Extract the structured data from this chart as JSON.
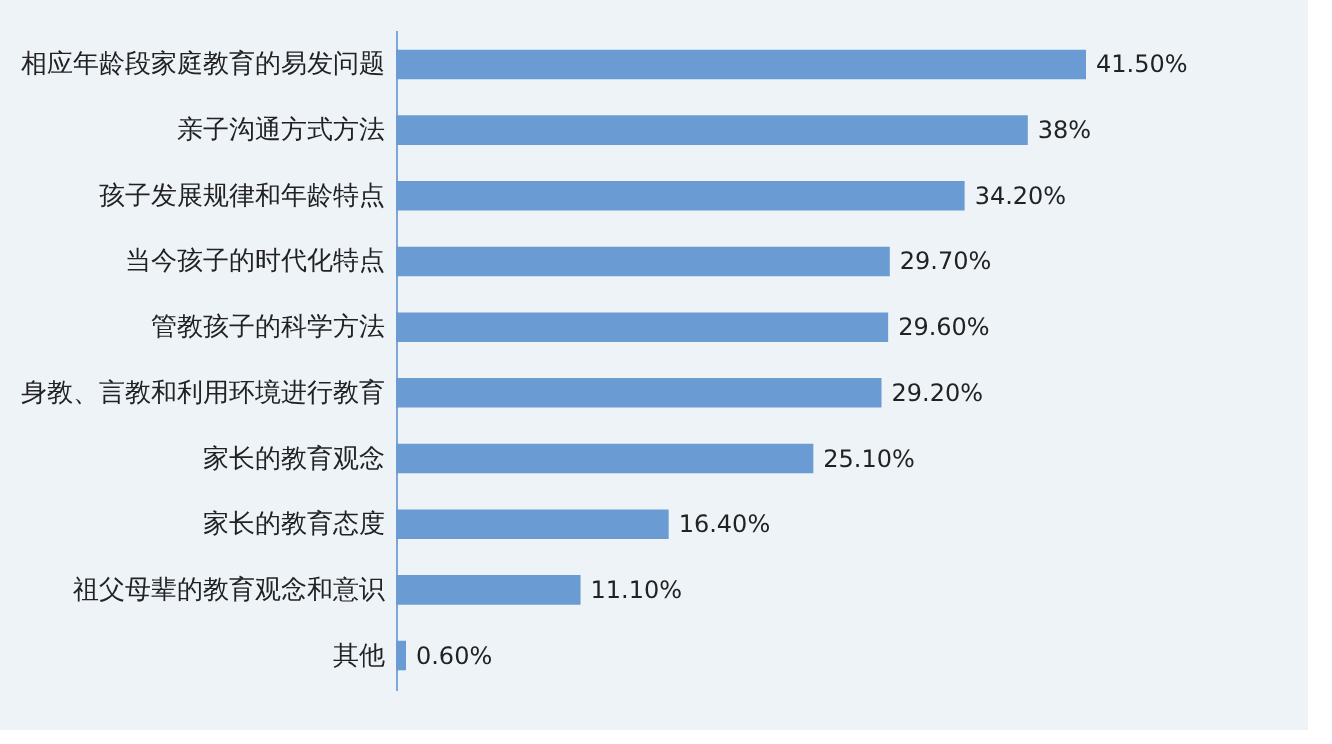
{
  "chart_data": {
    "type": "bar",
    "orientation": "horizontal",
    "categories": [
      "相应年龄段家庭教育的易发问题",
      "亲子沟通方式方法",
      "孩子发展规律和年龄特点",
      "当今孩子的时代化特点",
      "管教孩子的科学方法",
      "身教、言教和利用环境进行教育",
      "家长的教育观念",
      "家长的教育态度",
      "祖父母辈的教育观念和意识",
      "其他"
    ],
    "values": [
      41.5,
      38,
      34.2,
      29.7,
      29.6,
      29.2,
      25.1,
      16.4,
      11.1,
      0.6
    ],
    "value_labels": [
      "41.50%",
      "38%",
      "34.20%",
      "29.70%",
      "29.60%",
      "29.20%",
      "25.10%",
      "16.40%",
      "11.10%",
      "0.60%"
    ],
    "color": "#6a9bd3"
  }
}
